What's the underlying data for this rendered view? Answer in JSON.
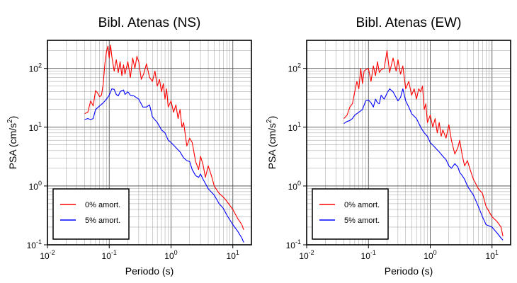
{
  "chart_data": [
    {
      "type": "line",
      "title": "Bibl. Atenas (NS)",
      "xlabel": "Periodo (s)",
      "ylabel": "PSA (cm/s2)",
      "xscale": "log",
      "yscale": "log",
      "xlim": [
        0.01,
        20
      ],
      "ylim": [
        0.1,
        300
      ],
      "grid": true,
      "legend_position": "bottom-left",
      "xticks": [
        {
          "value": 0.01,
          "base": "10",
          "exp": "-2"
        },
        {
          "value": 0.1,
          "base": "10",
          "exp": "-1"
        },
        {
          "value": 1,
          "base": "10",
          "exp": "0"
        },
        {
          "value": 10,
          "base": "10",
          "exp": "1"
        }
      ],
      "yticks": [
        {
          "value": 0.1,
          "base": "10",
          "exp": "-1"
        },
        {
          "value": 1,
          "base": "10",
          "exp": "0"
        },
        {
          "value": 10,
          "base": "10",
          "exp": "1"
        },
        {
          "value": 100,
          "base": "10",
          "exp": "2"
        }
      ],
      "series": [
        {
          "name": "0% amort.",
          "color": "#ff0000",
          "points": [
            [
              0.04,
              17
            ],
            [
              0.045,
              18
            ],
            [
              0.05,
              28
            ],
            [
              0.055,
              23
            ],
            [
              0.06,
              42
            ],
            [
              0.065,
              38
            ],
            [
              0.07,
              33
            ],
            [
              0.075,
              35
            ],
            [
              0.08,
              55
            ],
            [
              0.085,
              120
            ],
            [
              0.09,
              190
            ],
            [
              0.095,
              240
            ],
            [
              0.1,
              150
            ],
            [
              0.105,
              250
            ],
            [
              0.11,
              160
            ],
            [
              0.12,
              90
            ],
            [
              0.13,
              140
            ],
            [
              0.14,
              85
            ],
            [
              0.15,
              130
            ],
            [
              0.16,
              75
            ],
            [
              0.17,
              115
            ],
            [
              0.18,
              80
            ],
            [
              0.2,
              130
            ],
            [
              0.22,
              70
            ],
            [
              0.24,
              150
            ],
            [
              0.26,
              100
            ],
            [
              0.28,
              160
            ],
            [
              0.3,
              130
            ],
            [
              0.33,
              65
            ],
            [
              0.36,
              80
            ],
            [
              0.4,
              120
            ],
            [
              0.45,
              70
            ],
            [
              0.5,
              60
            ],
            [
              0.55,
              90
            ],
            [
              0.6,
              50
            ],
            [
              0.65,
              65
            ],
            [
              0.7,
              40
            ],
            [
              0.75,
              55
            ],
            [
              0.8,
              30
            ],
            [
              0.85,
              45
            ],
            [
              0.9,
              22
            ],
            [
              1.0,
              28
            ],
            [
              1.1,
              18
            ],
            [
              1.2,
              24
            ],
            [
              1.3,
              14
            ],
            [
              1.4,
              20
            ],
            [
              1.5,
              10
            ],
            [
              1.6,
              12
            ],
            [
              1.8,
              4.8
            ],
            [
              2.0,
              6.5
            ],
            [
              2.2,
              5.5
            ],
            [
              2.5,
              2.6
            ],
            [
              2.8,
              1.9
            ],
            [
              3.0,
              3.2
            ],
            [
              3.3,
              2.3
            ],
            [
              3.6,
              1.4
            ],
            [
              4.0,
              2.2
            ],
            [
              4.5,
              1.5
            ],
            [
              5.0,
              1.0
            ],
            [
              6.0,
              0.75
            ],
            [
              7.0,
              0.65
            ],
            [
              8.0,
              0.55
            ],
            [
              10.0,
              0.4
            ],
            [
              12.0,
              0.28
            ],
            [
              14.0,
              0.22
            ],
            [
              15.0,
              0.18
            ]
          ]
        },
        {
          "name": "5% amort.",
          "color": "#0000ff",
          "points": [
            [
              0.04,
              13.5
            ],
            [
              0.045,
              14
            ],
            [
              0.05,
              13.5
            ],
            [
              0.055,
              14
            ],
            [
              0.06,
              20
            ],
            [
              0.07,
              23
            ],
            [
              0.08,
              26
            ],
            [
              0.09,
              30
            ],
            [
              0.1,
              35
            ],
            [
              0.11,
              45
            ],
            [
              0.12,
              44
            ],
            [
              0.13,
              36
            ],
            [
              0.14,
              34
            ],
            [
              0.15,
              40
            ],
            [
              0.16,
              42
            ],
            [
              0.17,
              43
            ],
            [
              0.18,
              36
            ],
            [
              0.2,
              40
            ],
            [
              0.22,
              35
            ],
            [
              0.25,
              34
            ],
            [
              0.3,
              30
            ],
            [
              0.35,
              22
            ],
            [
              0.4,
              22
            ],
            [
              0.45,
              24
            ],
            [
              0.5,
              15
            ],
            [
              0.6,
              12
            ],
            [
              0.7,
              9
            ],
            [
              0.8,
              8
            ],
            [
              0.9,
              6
            ],
            [
              1.0,
              5.5
            ],
            [
              1.2,
              4.5
            ],
            [
              1.4,
              3.8
            ],
            [
              1.6,
              3.0
            ],
            [
              1.8,
              2.7
            ],
            [
              2.0,
              2.6
            ],
            [
              2.2,
              1.9
            ],
            [
              2.5,
              1.5
            ],
            [
              2.8,
              1.4
            ],
            [
              3.0,
              1.6
            ],
            [
              3.3,
              1.3
            ],
            [
              3.6,
              1.1
            ],
            [
              4.0,
              0.9
            ],
            [
              5.0,
              0.7
            ],
            [
              6.0,
              0.5
            ],
            [
              7.0,
              0.42
            ],
            [
              8.0,
              0.32
            ],
            [
              10.0,
              0.22
            ],
            [
              12.0,
              0.17
            ],
            [
              14.0,
              0.13
            ],
            [
              15.0,
              0.11
            ]
          ]
        }
      ]
    },
    {
      "type": "line",
      "title": "Bibl. Atenas (EW)",
      "xlabel": "Periodo (s)",
      "ylabel": "PSA (cm/s2)",
      "xscale": "log",
      "yscale": "log",
      "xlim": [
        0.01,
        20
      ],
      "ylim": [
        0.1,
        300
      ],
      "grid": true,
      "legend_position": "bottom-left",
      "xticks": [
        {
          "value": 0.01,
          "base": "10",
          "exp": "-2"
        },
        {
          "value": 0.1,
          "base": "10",
          "exp": "-1"
        },
        {
          "value": 1,
          "base": "10",
          "exp": "0"
        },
        {
          "value": 10,
          "base": "10",
          "exp": "1"
        }
      ],
      "yticks": [
        {
          "value": 0.1,
          "base": "10",
          "exp": "-1"
        },
        {
          "value": 1,
          "base": "10",
          "exp": "0"
        },
        {
          "value": 10,
          "base": "10",
          "exp": "1"
        },
        {
          "value": 100,
          "base": "10",
          "exp": "2"
        }
      ],
      "series": [
        {
          "name": "0% amort.",
          "color": "#ff0000",
          "points": [
            [
              0.04,
              14
            ],
            [
              0.045,
              16
            ],
            [
              0.05,
              22
            ],
            [
              0.055,
              25
            ],
            [
              0.06,
              40
            ],
            [
              0.065,
              60
            ],
            [
              0.07,
              45
            ],
            [
              0.075,
              100
            ],
            [
              0.08,
              55
            ],
            [
              0.085,
              90
            ],
            [
              0.09,
              95
            ],
            [
              0.1,
              100
            ],
            [
              0.11,
              60
            ],
            [
              0.12,
              110
            ],
            [
              0.13,
              75
            ],
            [
              0.14,
              130
            ],
            [
              0.15,
              85
            ],
            [
              0.16,
              95
            ],
            [
              0.18,
              100
            ],
            [
              0.2,
              200
            ],
            [
              0.22,
              85
            ],
            [
              0.25,
              150
            ],
            [
              0.28,
              90
            ],
            [
              0.3,
              140
            ],
            [
              0.33,
              80
            ],
            [
              0.36,
              110
            ],
            [
              0.4,
              45
            ],
            [
              0.45,
              60
            ],
            [
              0.5,
              35
            ],
            [
              0.55,
              45
            ],
            [
              0.6,
              30
            ],
            [
              0.65,
              45
            ],
            [
              0.7,
              40
            ],
            [
              0.75,
              50
            ],
            [
              0.8,
              20
            ],
            [
              0.85,
              25
            ],
            [
              0.9,
              12
            ],
            [
              1.0,
              16
            ],
            [
              1.1,
              10
            ],
            [
              1.2,
              14
            ],
            [
              1.3,
              8
            ],
            [
              1.4,
              12
            ],
            [
              1.5,
              7
            ],
            [
              1.6,
              9
            ],
            [
              1.8,
              6.5
            ],
            [
              2.0,
              11
            ],
            [
              2.2,
              6.0
            ],
            [
              2.5,
              3.5
            ],
            [
              2.8,
              4.5
            ],
            [
              3.0,
              6.0
            ],
            [
              3.3,
              3.3
            ],
            [
              3.6,
              2.2
            ],
            [
              4.0,
              2.7
            ],
            [
              4.5,
              1.8
            ],
            [
              5.0,
              1.3
            ],
            [
              6.0,
              0.9
            ],
            [
              7.0,
              0.75
            ],
            [
              8.0,
              0.45
            ],
            [
              10.0,
              0.3
            ],
            [
              12.0,
              0.25
            ],
            [
              14.0,
              0.2
            ],
            [
              15.0,
              0.14
            ]
          ]
        },
        {
          "name": "5% amort.",
          "color": "#0000ff",
          "points": [
            [
              0.04,
              11.5
            ],
            [
              0.045,
              12.5
            ],
            [
              0.05,
              13
            ],
            [
              0.055,
              14
            ],
            [
              0.06,
              16
            ],
            [
              0.07,
              18
            ],
            [
              0.08,
              20
            ],
            [
              0.09,
              28
            ],
            [
              0.1,
              29
            ],
            [
              0.11,
              26
            ],
            [
              0.12,
              22
            ],
            [
              0.13,
              30
            ],
            [
              0.14,
              26
            ],
            [
              0.15,
              25
            ],
            [
              0.16,
              35
            ],
            [
              0.18,
              30
            ],
            [
              0.2,
              38
            ],
            [
              0.22,
              45
            ],
            [
              0.25,
              40
            ],
            [
              0.28,
              32
            ],
            [
              0.3,
              28
            ],
            [
              0.33,
              32
            ],
            [
              0.36,
              45
            ],
            [
              0.4,
              28
            ],
            [
              0.45,
              22
            ],
            [
              0.5,
              17
            ],
            [
              0.6,
              14
            ],
            [
              0.7,
              10
            ],
            [
              0.8,
              8
            ],
            [
              0.9,
              7
            ],
            [
              1.0,
              5.5
            ],
            [
              1.2,
              4.5
            ],
            [
              1.4,
              3.8
            ],
            [
              1.6,
              3.2
            ],
            [
              1.8,
              2.8
            ],
            [
              2.0,
              2.2
            ],
            [
              2.2,
              2.0
            ],
            [
              2.5,
              2.4
            ],
            [
              2.8,
              2.1
            ],
            [
              3.0,
              1.7
            ],
            [
              3.3,
              1.5
            ],
            [
              3.6,
              1.3
            ],
            [
              4.0,
              1.0
            ],
            [
              5.0,
              0.7
            ],
            [
              6.0,
              0.45
            ],
            [
              7.0,
              0.3
            ],
            [
              8.0,
              0.22
            ],
            [
              10.0,
              0.2
            ],
            [
              12.0,
              0.16
            ],
            [
              14.0,
              0.13
            ],
            [
              15.0,
              0.12
            ]
          ]
        }
      ]
    }
  ]
}
